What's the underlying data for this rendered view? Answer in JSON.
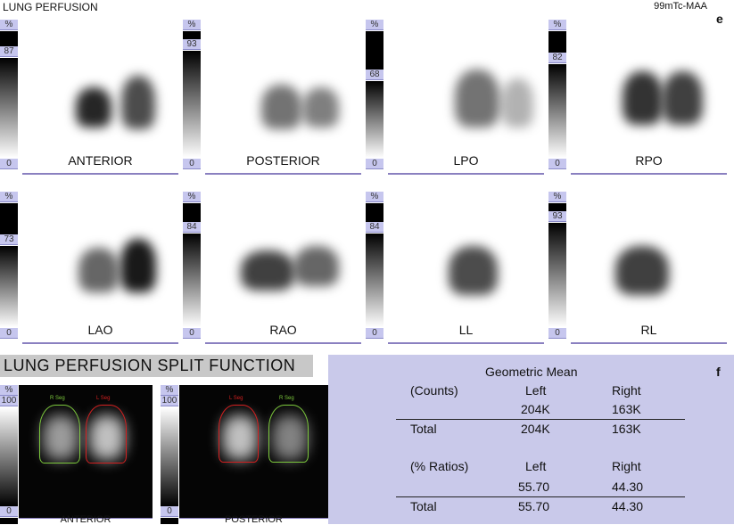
{
  "header": {
    "title": "LUNG PERFUSION",
    "tracer": "99mTc-MAA",
    "panel_e": "e",
    "panel_f": "f"
  },
  "scale_unit": "%",
  "views": [
    {
      "label": "ANTERIOR",
      "max": "87",
      "min": "0"
    },
    {
      "label": "POSTERIOR",
      "max": "93",
      "min": "0"
    },
    {
      "label": "LPO",
      "max": "68",
      "min": "0"
    },
    {
      "label": "RPO",
      "max": "82",
      "min": "0"
    },
    {
      "label": "LAO",
      "max": "73",
      "min": "0"
    },
    {
      "label": "RAO",
      "max": "84",
      "min": "0"
    },
    {
      "label": "LL",
      "max": "84",
      "min": "0"
    },
    {
      "label": "RL",
      "max": "93",
      "min": "0"
    }
  ],
  "split": {
    "title": "LUNG PERFUSION SPLIT FUNCTION",
    "panels": [
      {
        "label": "ANTERIOR",
        "max": "100",
        "min": "0",
        "seg_left": "R Seg",
        "seg_right": "L Seg"
      },
      {
        "label": "POSTERIOR",
        "max": "100",
        "min": "0",
        "seg_left": "L Seg",
        "seg_right": "R Seg"
      }
    ]
  },
  "table": {
    "title": "Geometric Mean",
    "counts": {
      "label": "(Counts)",
      "left_h": "Left",
      "right_h": "Right",
      "left": "204K",
      "right": "163K",
      "total_label": "Total",
      "total_left": "204K",
      "total_right": "163K"
    },
    "ratios": {
      "label": "(% Ratios)",
      "left_h": "Left",
      "right_h": "Right",
      "left": "55.70",
      "right": "44.30",
      "total_label": "Total",
      "total_left": "55.70",
      "total_right": "44.30"
    }
  },
  "colors": {
    "scale_label_bg": "#c6c6ee",
    "table_bg": "#c9c9ea",
    "left_seg": "#d42020",
    "right_seg": "#7cc83c"
  }
}
